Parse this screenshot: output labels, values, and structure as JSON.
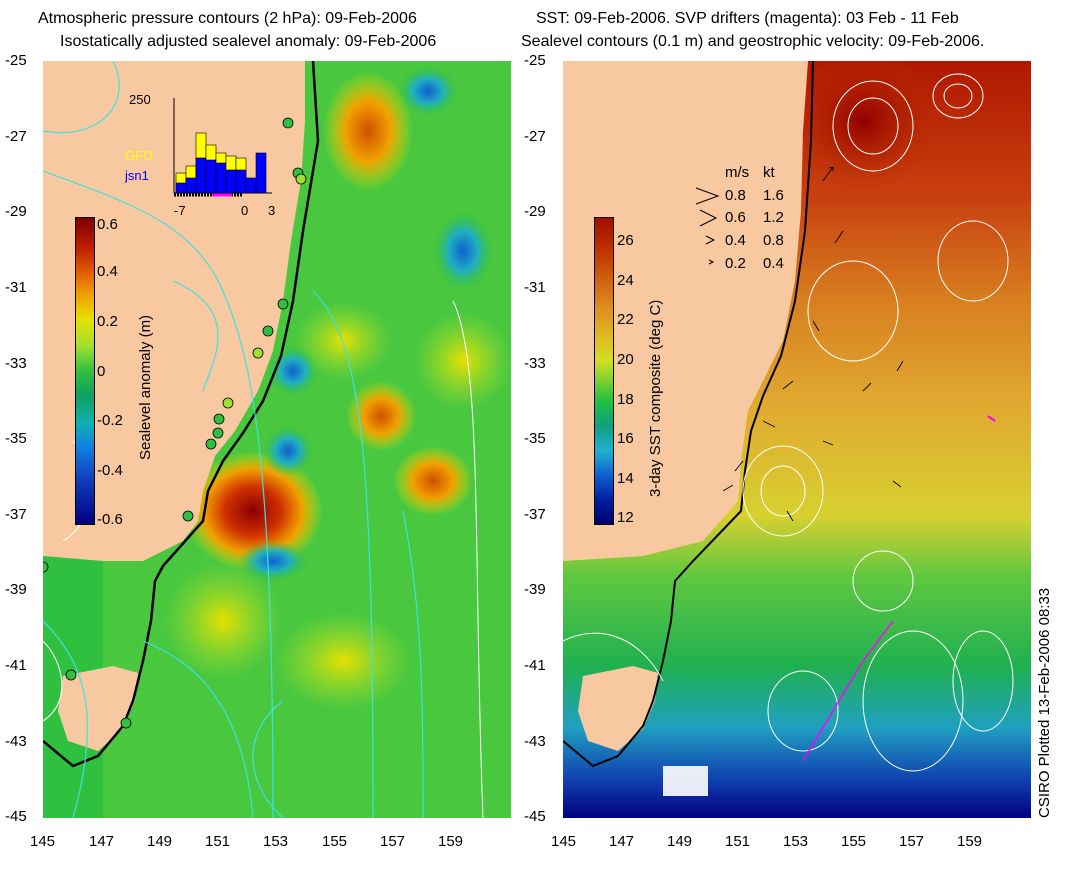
{
  "left_panel": {
    "title_line1": "Atmospheric pressure contours (2 hPa): 09-Feb-2006",
    "title_line2": "Isostatically adjusted sealevel anomaly: 09-Feb-2006",
    "colorbar": {
      "label": "Sealevel anomaly (m)",
      "ticks": [
        "0.6",
        "0.4",
        "0.2",
        "0",
        "-0.2",
        "-0.4",
        "-0.6"
      ],
      "colors": [
        "#7a0000",
        "#c02000",
        "#e06000",
        "#f0a000",
        "#e8e000",
        "#a0e030",
        "#30c040",
        "#10a060",
        "#10b0b0",
        "#1080e0",
        "#1040c0",
        "#000080"
      ]
    },
    "inset": {
      "y_max_label": "250",
      "legend": [
        "GFO",
        "jsn1"
      ],
      "legend_colors": [
        "#ffff00",
        "#0000ff"
      ],
      "x_ticks": [
        "-7",
        "0",
        "3"
      ]
    }
  },
  "right_panel": {
    "title_line1": "SST: 09-Feb-2006. SVP drifters (magenta): 03 Feb - 11 Feb",
    "title_line2": "Sealevel contours (0.1 m) and geostrophic velocity: 09-Feb-2006.",
    "colorbar": {
      "label": "3-day SST composite (deg C)",
      "ticks": [
        "26",
        "24",
        "22",
        "20",
        "18",
        "16",
        "14",
        "12"
      ],
      "colors": [
        "#a01000",
        "#c03000",
        "#d06010",
        "#e09020",
        "#e0c020",
        "#d0e020",
        "#80d030",
        "#20c040",
        "#10a080",
        "#20b0d0",
        "#1060d0",
        "#0020a0",
        "#000070"
      ]
    },
    "velocity_key": {
      "header_ms": "m/s",
      "header_kt": "kt",
      "rows": [
        {
          "ms": "0.8",
          "kt": "1.6"
        },
        {
          "ms": "0.6",
          "kt": "1.2"
        },
        {
          "ms": "0.4",
          "kt": "0.8"
        },
        {
          "ms": "0.2",
          "kt": "0.4"
        }
      ]
    }
  },
  "axes": {
    "lat_ticks": [
      "-25",
      "-27",
      "-29",
      "-31",
      "-33",
      "-35",
      "-37",
      "-39",
      "-41",
      "-43",
      "-45"
    ],
    "lon_ticks": [
      "145",
      "147",
      "149",
      "151",
      "153",
      "155",
      "157",
      "159"
    ]
  },
  "footer": "CSIRO Plotted 13-Feb-2006 08:33",
  "colors": {
    "land": "#f8c8a0",
    "coast_contour": "#000000",
    "pressure_contour": "#40e0e0",
    "sealevel_contour": "#ffffff"
  }
}
